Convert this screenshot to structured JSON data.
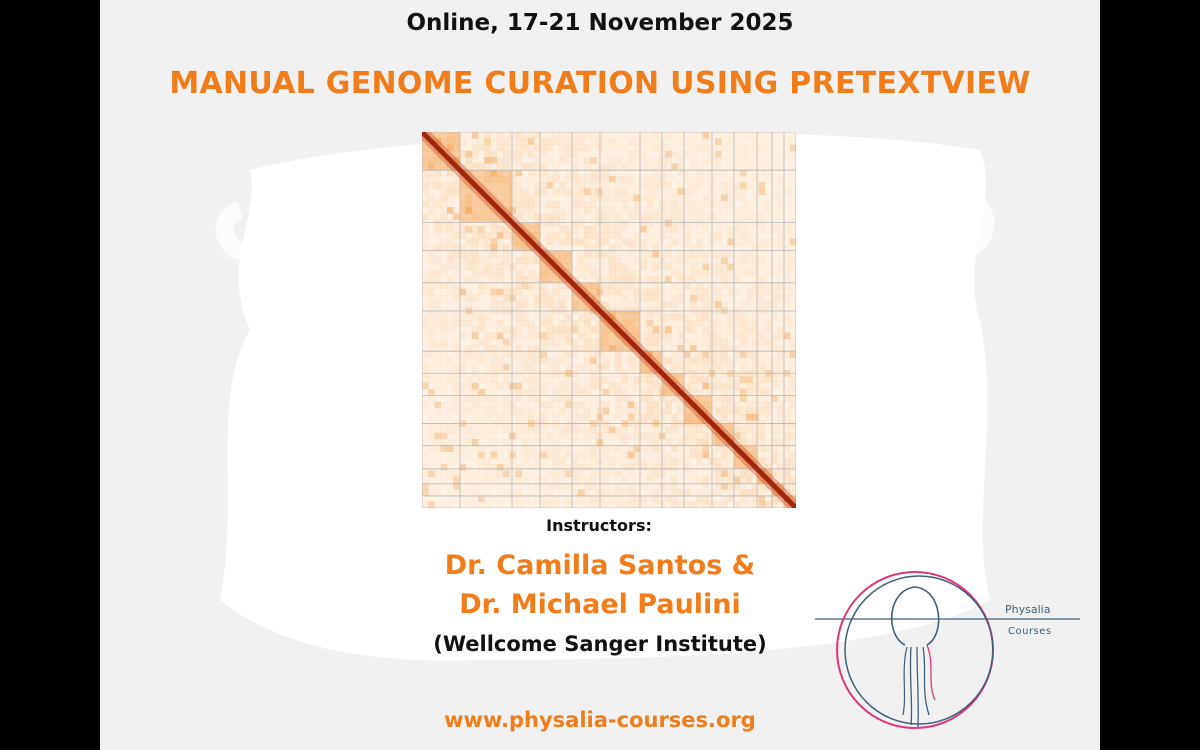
{
  "event": {
    "date_line": "Online, 17-21 November 2025",
    "title": "MANUAL GENOME CURATION USING PRETEXTVIEW"
  },
  "instructors": {
    "label": "Instructors:",
    "names_line1": "Dr. Camilla Santos &",
    "names_line2": "Dr. Michael Paulini",
    "affiliation": "(Wellcome Sanger Institute)"
  },
  "footer": {
    "url": "www.physalia-courses.org"
  },
  "logo": {
    "name": "Physalia",
    "subtitle": "Courses",
    "icon": "physalia-jellyfish-logo-icon"
  },
  "hic_map": {
    "icon": "hi-c-contact-map-image",
    "colors": {
      "diagonal": "#8b1a0a",
      "signal": "#f08a24",
      "grid": "#b9b9b9"
    }
  },
  "colors": {
    "accent": "#f07d1a",
    "text": "#111111",
    "background": "#f1f1f1",
    "logo_blue": "#3f5f7a",
    "logo_pink": "#e0357a"
  }
}
